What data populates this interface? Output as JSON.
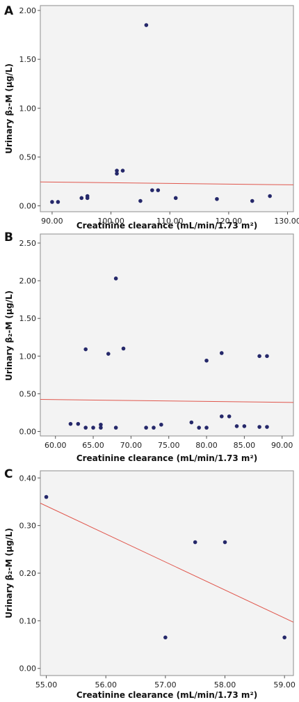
{
  "colors": {
    "point": "#25286a",
    "fit_line": "#e0564c",
    "plot_background": "#f3f3f3"
  },
  "chart_data": [
    {
      "type": "scatter",
      "panel_label": "A",
      "xlabel": "Creatinine clearance (mL/min/1.73 m²)",
      "ylabel": "Urinary β₂-M (μg/L)",
      "xlim": [
        88,
        131
      ],
      "ylim": [
        -0.06,
        2.05
      ],
      "x_ticks": [
        90,
        100,
        110,
        120,
        130
      ],
      "x_tick_labels": [
        "90.00",
        "100.00",
        "110.00",
        "120.00",
        "130.00"
      ],
      "y_ticks": [
        0,
        0.5,
        1.0,
        1.5,
        2.0
      ],
      "y_tick_labels": [
        "0.00",
        "0.50",
        "1.00",
        "1.50",
        "2.00"
      ],
      "points": [
        {
          "x": 90,
          "y": 0.04
        },
        {
          "x": 91,
          "y": 0.04
        },
        {
          "x": 95,
          "y": 0.08
        },
        {
          "x": 96,
          "y": 0.08
        },
        {
          "x": 96,
          "y": 0.1
        },
        {
          "x": 101,
          "y": 0.33
        },
        {
          "x": 101,
          "y": 0.36
        },
        {
          "x": 102,
          "y": 0.36
        },
        {
          "x": 105,
          "y": 0.05
        },
        {
          "x": 106,
          "y": 1.85
        },
        {
          "x": 107,
          "y": 0.16
        },
        {
          "x": 108,
          "y": 0.16
        },
        {
          "x": 111,
          "y": 0.08
        },
        {
          "x": 118,
          "y": 0.07
        },
        {
          "x": 124,
          "y": 0.05
        },
        {
          "x": 127,
          "y": 0.1
        }
      ],
      "fit_line": [
        {
          "x": 88,
          "y": 0.245
        },
        {
          "x": 131,
          "y": 0.215
        }
      ]
    },
    {
      "type": "scatter",
      "panel_label": "B",
      "xlabel": "Creatinine clearance (mL/min/1.73 m²)",
      "ylabel": "Urinary β₂-M (μg/L)",
      "xlim": [
        58,
        91.5
      ],
      "ylim": [
        -0.06,
        2.62
      ],
      "x_ticks": [
        60,
        65,
        70,
        75,
        80,
        85,
        90
      ],
      "x_tick_labels": [
        "60.00",
        "65.00",
        "70.00",
        "75.00",
        "80.00",
        "85.00",
        "90.00"
      ],
      "y_ticks": [
        0,
        0.5,
        1.0,
        1.5,
        2.0,
        2.5
      ],
      "y_tick_labels": [
        "0.00",
        "0.50",
        "1.00",
        "1.50",
        "2.00",
        "2.50"
      ],
      "points": [
        {
          "x": 62,
          "y": 0.1
        },
        {
          "x": 63,
          "y": 0.1
        },
        {
          "x": 64,
          "y": 0.05
        },
        {
          "x": 64,
          "y": 1.09
        },
        {
          "x": 65,
          "y": 0.05
        },
        {
          "x": 66,
          "y": 0.05
        },
        {
          "x": 66,
          "y": 0.09
        },
        {
          "x": 67,
          "y": 1.03
        },
        {
          "x": 68,
          "y": 0.05
        },
        {
          "x": 68,
          "y": 2.03
        },
        {
          "x": 69,
          "y": 1.1
        },
        {
          "x": 72,
          "y": 0.05
        },
        {
          "x": 73,
          "y": 0.05
        },
        {
          "x": 74,
          "y": 0.09
        },
        {
          "x": 78,
          "y": 0.12
        },
        {
          "x": 79,
          "y": 0.05
        },
        {
          "x": 80,
          "y": 0.05
        },
        {
          "x": 80,
          "y": 0.94
        },
        {
          "x": 82,
          "y": 0.2
        },
        {
          "x": 82,
          "y": 1.04
        },
        {
          "x": 83,
          "y": 0.2
        },
        {
          "x": 84,
          "y": 0.07
        },
        {
          "x": 85,
          "y": 0.07
        },
        {
          "x": 87,
          "y": 0.06
        },
        {
          "x": 87,
          "y": 1.0
        },
        {
          "x": 88,
          "y": 0.06
        },
        {
          "x": 88,
          "y": 1.0
        }
      ],
      "fit_line": [
        {
          "x": 58,
          "y": 0.425
        },
        {
          "x": 91.5,
          "y": 0.385
        }
      ]
    },
    {
      "type": "scatter",
      "panel_label": "C",
      "xlabel": "Creatinine clearance (mL/min/1.73 m²)",
      "ylabel": "Urinary β₂-M (μg/L)",
      "xlim": [
        54.9,
        59.15
      ],
      "ylim": [
        -0.015,
        0.415
      ],
      "x_ticks": [
        55,
        56,
        57,
        58,
        59
      ],
      "x_tick_labels": [
        "55.00",
        "56.00",
        "57.00",
        "58.00",
        "59.00"
      ],
      "y_ticks": [
        0,
        0.1,
        0.2,
        0.3,
        0.4
      ],
      "y_tick_labels": [
        "0.00",
        "0.10",
        "0.20",
        "0.30",
        "0.40"
      ],
      "points": [
        {
          "x": 55,
          "y": 0.36
        },
        {
          "x": 57,
          "y": 0.065
        },
        {
          "x": 57.5,
          "y": 0.265
        },
        {
          "x": 58,
          "y": 0.265
        },
        {
          "x": 59,
          "y": 0.065
        }
      ],
      "fit_line": [
        {
          "x": 54.9,
          "y": 0.347
        },
        {
          "x": 59.15,
          "y": 0.097
        }
      ]
    }
  ]
}
